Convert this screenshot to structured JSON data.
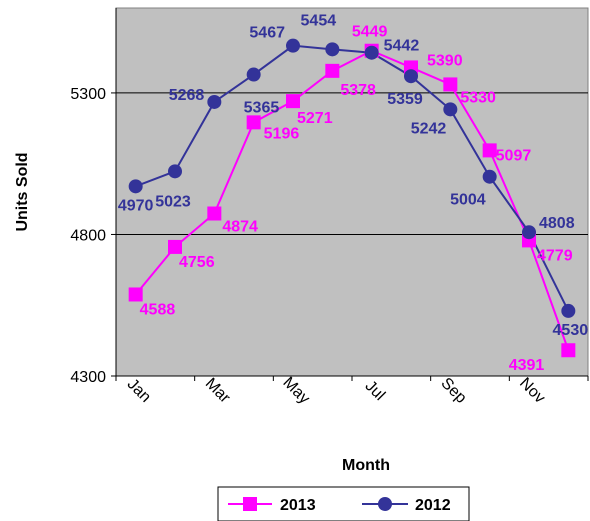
{
  "chart_data": {
    "type": "line",
    "title": "",
    "xlabel": "Month",
    "ylabel": "Units Sold",
    "categories": [
      "Jan",
      "Feb",
      "Mar",
      "Apr",
      "May",
      "Jun",
      "Jul",
      "Aug",
      "Sep",
      "Oct",
      "Nov",
      "Dec"
    ],
    "x_tick_labels": [
      "Jan",
      "Mar",
      "May",
      "Jul",
      "Sep",
      "Nov"
    ],
    "y_tick_labels": [
      "4300",
      "4800",
      "5300"
    ],
    "ylim": [
      4300,
      5600
    ],
    "grid": "horizontal",
    "legend_position": "bottom",
    "plot_background": "#c0c0c0",
    "series": [
      {
        "name": "2013",
        "color": "#ff00ff",
        "marker": "square",
        "values": [
          4588,
          4756,
          4874,
          5196,
          5271,
          5378,
          5449,
          5390,
          5330,
          5097,
          4779,
          4391
        ],
        "labels": [
          "4588",
          "4756",
          "4874",
          "5196",
          "5271",
          "5378",
          "5449",
          "5390",
          "5330",
          "5097",
          "4779",
          "4391"
        ]
      },
      {
        "name": "2012",
        "color": "#333399",
        "marker": "circle",
        "values": [
          4970,
          5023,
          5268,
          5365,
          5467,
          5454,
          5442,
          5359,
          5242,
          5004,
          4808,
          4530
        ],
        "labels": [
          "4970",
          "5023",
          "5268",
          "5365",
          "5467",
          "5454",
          "5442",
          "5359",
          "5242",
          "5004",
          "4808",
          "4530"
        ]
      }
    ]
  }
}
